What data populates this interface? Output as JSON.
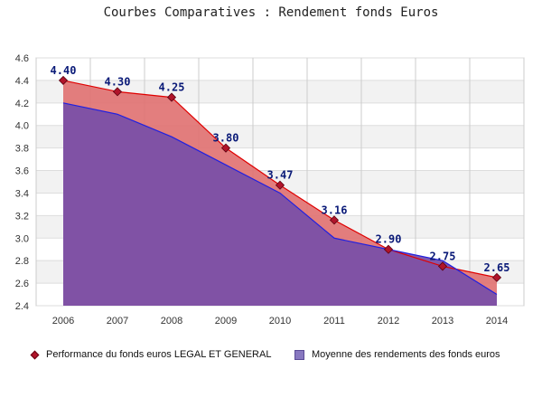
{
  "chart_data": {
    "type": "area",
    "title": "Courbes Comparatives : Rendement fonds Euros",
    "xlabel": "",
    "ylabel": "",
    "x": [
      "2006",
      "2007",
      "2008",
      "2009",
      "2010",
      "2011",
      "2012",
      "2013",
      "2014"
    ],
    "ylim": [
      2.4,
      4.6
    ],
    "yticks": [
      "2.4",
      "2.6",
      "2.8",
      "3.0",
      "3.2",
      "3.4",
      "3.6",
      "3.8",
      "4.0",
      "4.2",
      "4.4",
      "4.6"
    ],
    "grid": true,
    "legend_position": "bottom",
    "series": [
      {
        "name": "Performance du fonds euros LEGAL ET GENERAL",
        "values": [
          4.4,
          4.3,
          4.25,
          3.8,
          3.47,
          3.16,
          2.9,
          2.75,
          2.65
        ],
        "labels": [
          "4.40",
          "4.30",
          "4.25",
          "3.80",
          "3.47",
          "3.16",
          "2.90",
          "2.75",
          "2.65"
        ],
        "line_color": "#e00000",
        "fill_color": "#e07070",
        "marker": "diamond",
        "marker_color": "#b0142a"
      },
      {
        "name": "Moyenne des rendements des fonds euros",
        "values": [
          4.2,
          4.1,
          3.9,
          3.65,
          3.4,
          3.0,
          2.9,
          2.8,
          2.5
        ],
        "line_color": "#2020e0",
        "fill_color": "#7a50a8"
      }
    ]
  }
}
